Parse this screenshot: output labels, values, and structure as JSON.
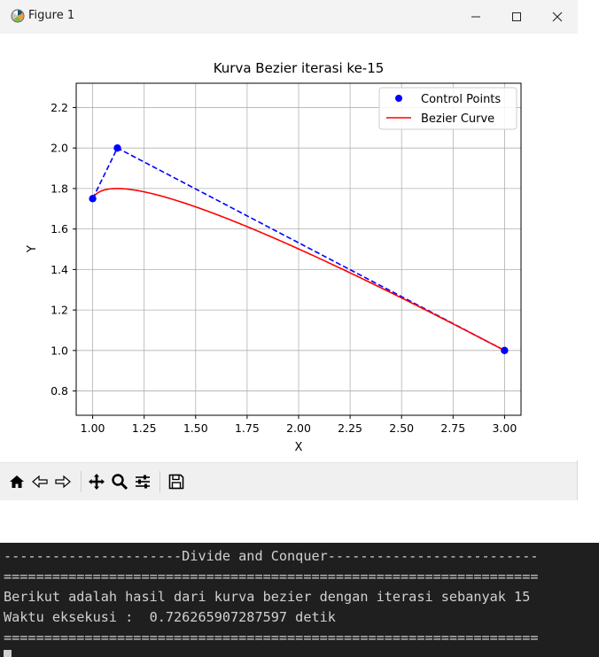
{
  "window": {
    "title": "Figure 1",
    "controls": [
      "minimize-icon",
      "maximize-icon",
      "close-icon"
    ]
  },
  "toolbar": {
    "icons": [
      "home-icon",
      "back-icon",
      "forward-icon",
      "pan-icon",
      "zoom-icon",
      "configure-subplots-icon",
      "save-icon"
    ]
  },
  "chart_data": {
    "type": "line",
    "title": "Kurva Bezier iterasi ke-15",
    "xlabel": "X",
    "ylabel": "Y",
    "xlim": [
      0.92,
      3.08
    ],
    "ylim": [
      0.68,
      2.32
    ],
    "xticks": [
      1.0,
      1.25,
      1.5,
      1.75,
      2.0,
      2.25,
      2.5,
      2.75,
      3.0
    ],
    "xtick_labels": [
      "1.00",
      "1.25",
      "1.50",
      "1.75",
      "2.00",
      "2.25",
      "2.50",
      "2.75",
      "3.00"
    ],
    "yticks": [
      0.8,
      1.0,
      1.2,
      1.4,
      1.6,
      1.8,
      2.0,
      2.2
    ],
    "ytick_labels": [
      "0.8",
      "1.0",
      "1.2",
      "1.4",
      "1.6",
      "1.8",
      "2.0",
      "2.2"
    ],
    "grid": true,
    "legend_position": "top-right",
    "control_points": {
      "name": "Control Points",
      "color": "#0000ff",
      "x": [
        1.0,
        1.12,
        3.0
      ],
      "y": [
        1.75,
        2.0,
        1.0
      ],
      "polygon_style": "dashed"
    },
    "curve": {
      "name": "Bezier Curve",
      "color": "#ff0000",
      "type": "quadratic-bezier"
    }
  },
  "terminal": {
    "lines": [
      "----------------------Divide and Conquer--------------------------",
      "==================================================================",
      "Berikut adalah hasil dari kurva bezier dengan iterasi sebanyak 15",
      "Waktu eksekusi :  0.726265907287597 detik",
      "=================================================================="
    ]
  }
}
